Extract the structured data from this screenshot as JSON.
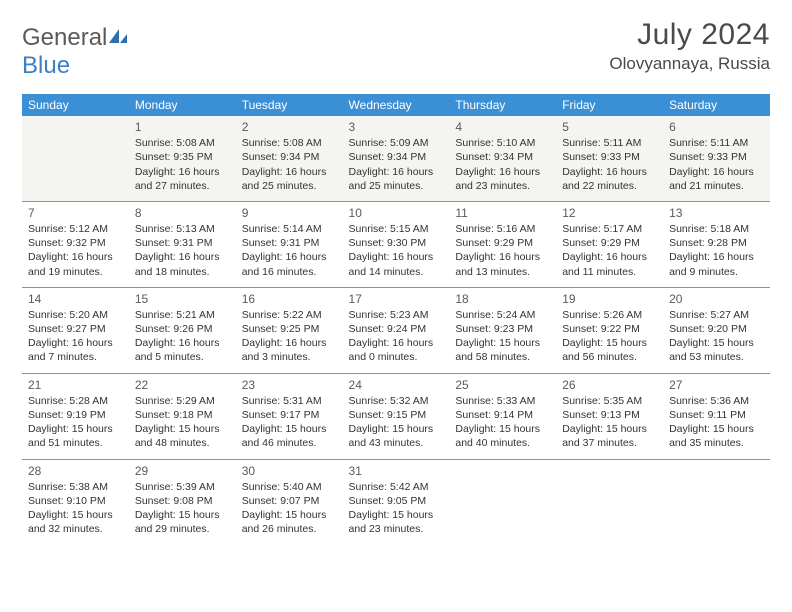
{
  "brand": {
    "name_a": "General",
    "name_b": "Blue"
  },
  "title": "July 2024",
  "location": "Olovyannaya, Russia",
  "header_bg": "#3b8fd4",
  "divider_color": "#6a9bc7",
  "spacer_bg": "#f4f4f1",
  "text_color": "#333333",
  "title_color": "#4a4a4a",
  "day_headers": [
    "Sunday",
    "Monday",
    "Tuesday",
    "Wednesday",
    "Thursday",
    "Friday",
    "Saturday"
  ],
  "weeks": [
    [
      null,
      {
        "n": "1",
        "sr": "5:08 AM",
        "ss": "9:35 PM",
        "dl": "16 hours and 27 minutes."
      },
      {
        "n": "2",
        "sr": "5:08 AM",
        "ss": "9:34 PM",
        "dl": "16 hours and 25 minutes."
      },
      {
        "n": "3",
        "sr": "5:09 AM",
        "ss": "9:34 PM",
        "dl": "16 hours and 25 minutes."
      },
      {
        "n": "4",
        "sr": "5:10 AM",
        "ss": "9:34 PM",
        "dl": "16 hours and 23 minutes."
      },
      {
        "n": "5",
        "sr": "5:11 AM",
        "ss": "9:33 PM",
        "dl": "16 hours and 22 minutes."
      },
      {
        "n": "6",
        "sr": "5:11 AM",
        "ss": "9:33 PM",
        "dl": "16 hours and 21 minutes."
      }
    ],
    [
      {
        "n": "7",
        "sr": "5:12 AM",
        "ss": "9:32 PM",
        "dl": "16 hours and 19 minutes."
      },
      {
        "n": "8",
        "sr": "5:13 AM",
        "ss": "9:31 PM",
        "dl": "16 hours and 18 minutes."
      },
      {
        "n": "9",
        "sr": "5:14 AM",
        "ss": "9:31 PM",
        "dl": "16 hours and 16 minutes."
      },
      {
        "n": "10",
        "sr": "5:15 AM",
        "ss": "9:30 PM",
        "dl": "16 hours and 14 minutes."
      },
      {
        "n": "11",
        "sr": "5:16 AM",
        "ss": "9:29 PM",
        "dl": "16 hours and 13 minutes."
      },
      {
        "n": "12",
        "sr": "5:17 AM",
        "ss": "9:29 PM",
        "dl": "16 hours and 11 minutes."
      },
      {
        "n": "13",
        "sr": "5:18 AM",
        "ss": "9:28 PM",
        "dl": "16 hours and 9 minutes."
      }
    ],
    [
      {
        "n": "14",
        "sr": "5:20 AM",
        "ss": "9:27 PM",
        "dl": "16 hours and 7 minutes."
      },
      {
        "n": "15",
        "sr": "5:21 AM",
        "ss": "9:26 PM",
        "dl": "16 hours and 5 minutes."
      },
      {
        "n": "16",
        "sr": "5:22 AM",
        "ss": "9:25 PM",
        "dl": "16 hours and 3 minutes."
      },
      {
        "n": "17",
        "sr": "5:23 AM",
        "ss": "9:24 PM",
        "dl": "16 hours and 0 minutes."
      },
      {
        "n": "18",
        "sr": "5:24 AM",
        "ss": "9:23 PM",
        "dl": "15 hours and 58 minutes."
      },
      {
        "n": "19",
        "sr": "5:26 AM",
        "ss": "9:22 PM",
        "dl": "15 hours and 56 minutes."
      },
      {
        "n": "20",
        "sr": "5:27 AM",
        "ss": "9:20 PM",
        "dl": "15 hours and 53 minutes."
      }
    ],
    [
      {
        "n": "21",
        "sr": "5:28 AM",
        "ss": "9:19 PM",
        "dl": "15 hours and 51 minutes."
      },
      {
        "n": "22",
        "sr": "5:29 AM",
        "ss": "9:18 PM",
        "dl": "15 hours and 48 minutes."
      },
      {
        "n": "23",
        "sr": "5:31 AM",
        "ss": "9:17 PM",
        "dl": "15 hours and 46 minutes."
      },
      {
        "n": "24",
        "sr": "5:32 AM",
        "ss": "9:15 PM",
        "dl": "15 hours and 43 minutes."
      },
      {
        "n": "25",
        "sr": "5:33 AM",
        "ss": "9:14 PM",
        "dl": "15 hours and 40 minutes."
      },
      {
        "n": "26",
        "sr": "5:35 AM",
        "ss": "9:13 PM",
        "dl": "15 hours and 37 minutes."
      },
      {
        "n": "27",
        "sr": "5:36 AM",
        "ss": "9:11 PM",
        "dl": "15 hours and 35 minutes."
      }
    ],
    [
      {
        "n": "28",
        "sr": "5:38 AM",
        "ss": "9:10 PM",
        "dl": "15 hours and 32 minutes."
      },
      {
        "n": "29",
        "sr": "5:39 AM",
        "ss": "9:08 PM",
        "dl": "15 hours and 29 minutes."
      },
      {
        "n": "30",
        "sr": "5:40 AM",
        "ss": "9:07 PM",
        "dl": "15 hours and 26 minutes."
      },
      {
        "n": "31",
        "sr": "5:42 AM",
        "ss": "9:05 PM",
        "dl": "15 hours and 23 minutes."
      },
      null,
      null,
      null
    ]
  ],
  "labels": {
    "sunrise": "Sunrise:",
    "sunset": "Sunset:",
    "daylight": "Daylight:"
  }
}
